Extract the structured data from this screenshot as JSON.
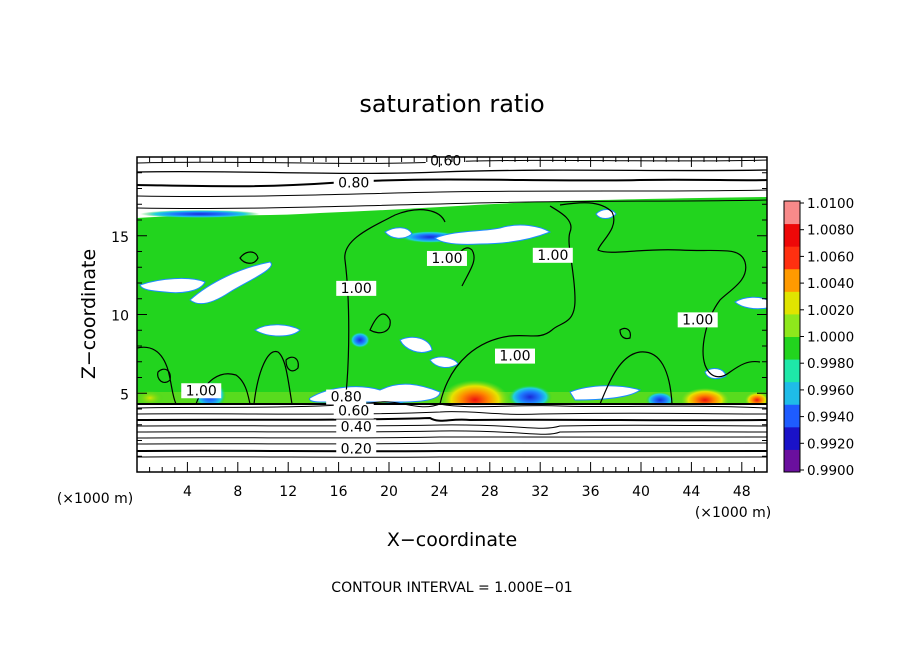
{
  "chart_data": {
    "type": "heatmap",
    "title": "saturation ratio",
    "xlabel": "X−coordinate",
    "ylabel": "Z−coordinate",
    "x_unit": "(×1000 m)",
    "y_unit": "(×1000 m)",
    "xlim": [
      0,
      50
    ],
    "ylim": [
      0,
      20
    ],
    "x_ticks": [
      4,
      8,
      12,
      16,
      20,
      24,
      28,
      32,
      36,
      40,
      44,
      48
    ],
    "y_ticks": [
      5,
      10,
      15
    ],
    "x_tick_labels": [
      "4",
      "8",
      "12",
      "16",
      "20",
      "24",
      "28",
      "32",
      "36",
      "40",
      "44",
      "48"
    ],
    "y_tick_labels": [
      "5",
      "10",
      "15"
    ],
    "colorbar": {
      "levels": [
        0.99,
        0.992,
        0.994,
        0.996,
        0.998,
        1.0,
        1.002,
        1.004,
        1.006,
        1.008,
        1.01
      ],
      "labels": [
        "0.9900",
        "0.9920",
        "0.9940",
        "0.9960",
        "0.9980",
        "1.0000",
        "1.0020",
        "1.0040",
        "1.0060",
        "1.0080",
        "1.0100"
      ],
      "colors": [
        "#6a0f9e",
        "#1a12c8",
        "#1e5cff",
        "#1fbce8",
        "#1ee8a8",
        "#22d41e",
        "#8ee81c",
        "#e0e400",
        "#ff9a00",
        "#ff3010",
        "#ee0808",
        "#f88a8a"
      ]
    },
    "contour_labels": [
      {
        "text": "0.60",
        "x": 24.5,
        "z": 19.6
      },
      {
        "text": "0.80",
        "x": 17.2,
        "z": 18.2
      },
      {
        "text": "1.00",
        "x": 17.4,
        "z": 11.5
      },
      {
        "text": "1.00",
        "x": 24.6,
        "z": 13.4
      },
      {
        "text": "1.00",
        "x": 33.0,
        "z": 13.6
      },
      {
        "text": "1.00",
        "x": 30.0,
        "z": 7.2
      },
      {
        "text": "1.00",
        "x": 44.5,
        "z": 9.5
      },
      {
        "text": "1.00",
        "x": 5.1,
        "z": 5.0
      },
      {
        "text": "0.80",
        "x": 16.6,
        "z": 4.6
      },
      {
        "text": "0.60",
        "x": 17.2,
        "z": 3.7
      },
      {
        "text": "0.40",
        "x": 17.4,
        "z": 2.7
      },
      {
        "text": "0.20",
        "x": 17.4,
        "z": 1.3
      }
    ],
    "contour_interval_text": "CONTOUR INTERVAL = 1.000E−01"
  }
}
